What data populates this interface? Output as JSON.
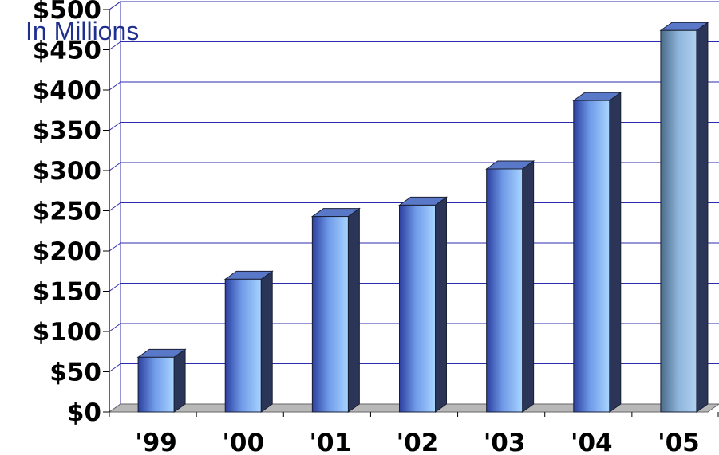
{
  "chart_data": {
    "type": "bar",
    "unit_label": "In Millions",
    "categories": [
      "'99",
      "'00",
      "'01",
      "'02",
      "'03",
      "'04",
      "'05"
    ],
    "values": [
      68,
      165,
      243,
      257,
      302,
      387,
      474
    ],
    "yticks": [
      "$0",
      "$50",
      "$100",
      "$150",
      "$200",
      "$250",
      "$300",
      "$350",
      "$400",
      "$450",
      "$500"
    ],
    "ylim": [
      0,
      500
    ],
    "grid": true,
    "style": "3d-column",
    "colors": {
      "bar_light": "#a8d4ff",
      "bar_mid": "#6f9ae8",
      "bar_dark": "#2b3f9e",
      "bar_side": "#2a3558",
      "bar_top": "#5a78c8",
      "last_bar_light": "#b0d0f0",
      "last_bar_dark": "#4a6a88",
      "grid": "#2b2bb0",
      "floor": "#b8b8b8",
      "unit_label": "#1f2f8f"
    }
  }
}
